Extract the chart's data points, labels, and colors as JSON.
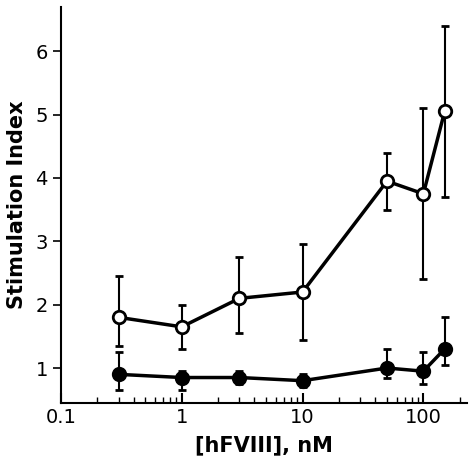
{
  "open_x": [
    0.3,
    1.0,
    3.0,
    10.0,
    50.0,
    100.0,
    150.0
  ],
  "open_y": [
    1.8,
    1.65,
    2.1,
    2.2,
    3.95,
    3.75,
    5.05
  ],
  "open_yerr_low": [
    0.45,
    0.35,
    0.55,
    0.75,
    0.45,
    1.35,
    1.35
  ],
  "open_yerr_high": [
    0.65,
    0.35,
    0.65,
    0.75,
    0.45,
    1.35,
    1.35
  ],
  "filled_x": [
    0.3,
    1.0,
    3.0,
    10.0,
    50.0,
    100.0,
    150.0
  ],
  "filled_y": [
    0.9,
    0.85,
    0.85,
    0.8,
    1.0,
    0.95,
    1.3
  ],
  "filled_yerr_low": [
    0.25,
    0.2,
    0.1,
    0.1,
    0.15,
    0.2,
    0.25
  ],
  "filled_yerr_high": [
    0.35,
    0.1,
    0.1,
    0.1,
    0.3,
    0.3,
    0.5
  ],
  "xlim": [
    0.13,
    230
  ],
  "ylim": [
    0.45,
    6.7
  ],
  "yticks": [
    1,
    2,
    3,
    4,
    5,
    6
  ],
  "xtick_labels": [
    "0.1",
    "1",
    "10",
    "100"
  ],
  "xtick_positions": [
    0.1,
    1,
    10,
    100
  ],
  "xlabel": "[hFVIII], nM",
  "ylabel": "Stimulation Index",
  "linewidth": 2.5,
  "markersize": 9,
  "capsize": 3,
  "elinewidth": 1.5
}
